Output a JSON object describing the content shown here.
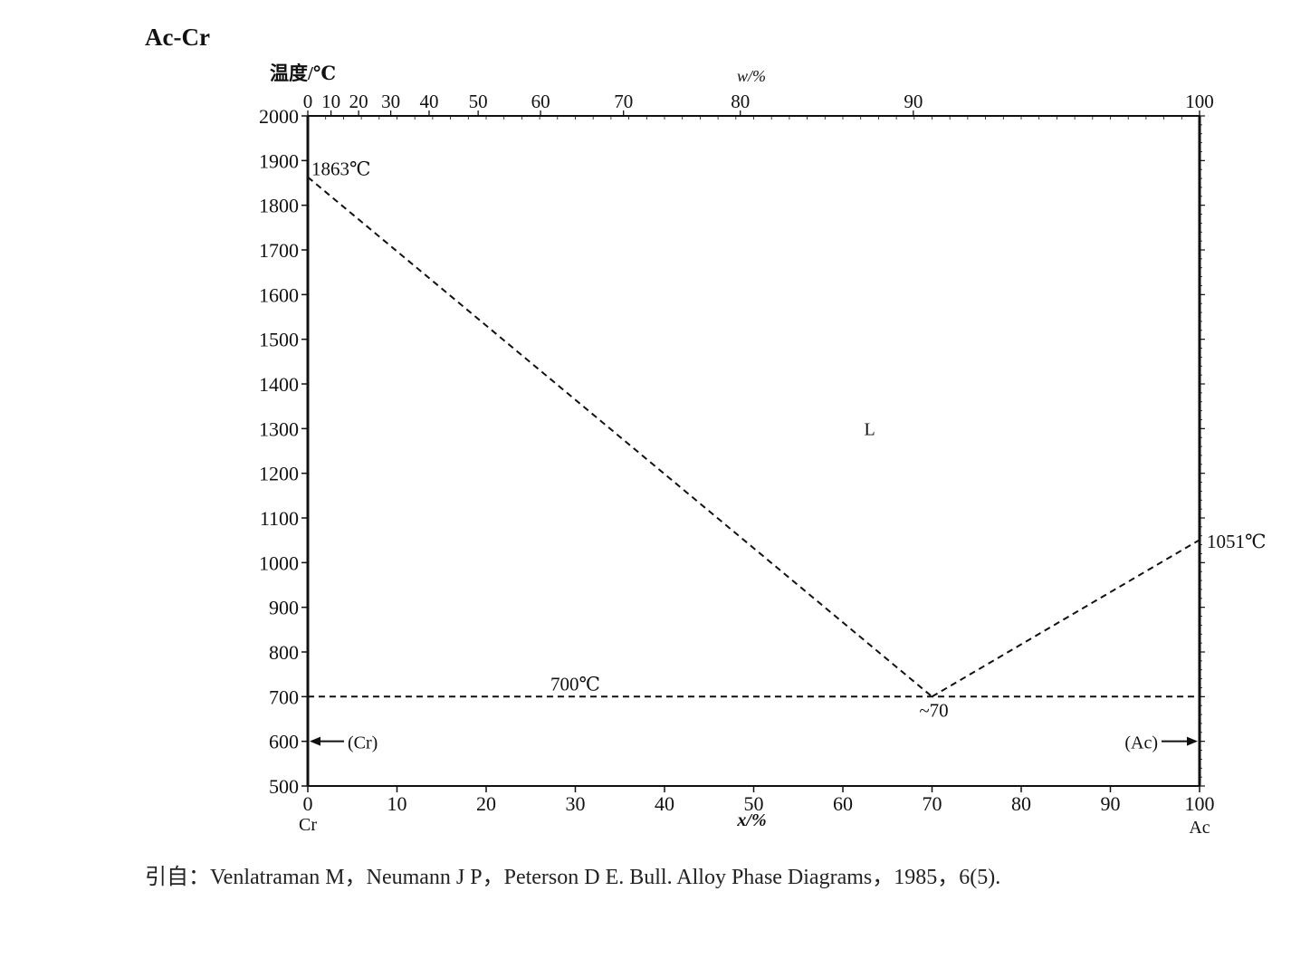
{
  "title": "Ac-Cr",
  "citation": "引自：Venlatraman M，Neumann J P，Peterson D E. Bull. Alloy Phase Diagrams，1985，6(5).",
  "chart_data": {
    "type": "line",
    "title": "Ac-Cr",
    "ylabel": "温度/℃",
    "xlabel": "x/%",
    "top_xlabel": "w/%",
    "ylim": [
      500,
      2000
    ],
    "xlim": [
      0,
      100
    ],
    "yticks": [
      500,
      600,
      700,
      800,
      900,
      1000,
      1100,
      1200,
      1300,
      1400,
      1500,
      1600,
      1700,
      1800,
      1900,
      2000
    ],
    "xticks": [
      0,
      10,
      20,
      30,
      40,
      50,
      60,
      70,
      80,
      90,
      100
    ],
    "top_xticks": [
      {
        "label": "0",
        "x": 0.0
      },
      {
        "label": "10",
        "x": 2.6
      },
      {
        "label": "20",
        "x": 5.7
      },
      {
        "label": "30",
        "x": 9.3
      },
      {
        "label": "40",
        "x": 13.6
      },
      {
        "label": "50",
        "x": 19.1
      },
      {
        "label": "60",
        "x": 26.1
      },
      {
        "label": "70",
        "x": 35.4
      },
      {
        "label": "80",
        "x": 48.5
      },
      {
        "label": "90",
        "x": 67.9
      },
      {
        "label": "100",
        "x": 100
      }
    ],
    "endpoint_labels": [
      "Cr",
      "Ac"
    ],
    "series": [
      {
        "style": "dashed",
        "points": [
          [
            0,
            1863
          ],
          [
            70,
            700
          ]
        ]
      },
      {
        "style": "dashed",
        "points": [
          [
            70,
            700
          ],
          [
            100,
            1051
          ]
        ]
      },
      {
        "style": "dashed",
        "points": [
          [
            0,
            700
          ],
          [
            100,
            700
          ]
        ]
      }
    ],
    "annotations": [
      {
        "text": "1863℃",
        "x": 0,
        "y": 1863
      },
      {
        "text": "1051℃",
        "x": 100,
        "y": 1051
      },
      {
        "text": "700℃",
        "x": 30,
        "y": 700
      },
      {
        "text": "~70",
        "x": 70,
        "y": 700
      },
      {
        "text": "L",
        "x": 63,
        "y": 1300
      },
      {
        "text": "(Cr)",
        "x": 0,
        "y": 600
      },
      {
        "text": "(Ac)",
        "x": 100,
        "y": 600
      }
    ],
    "grid": false
  }
}
